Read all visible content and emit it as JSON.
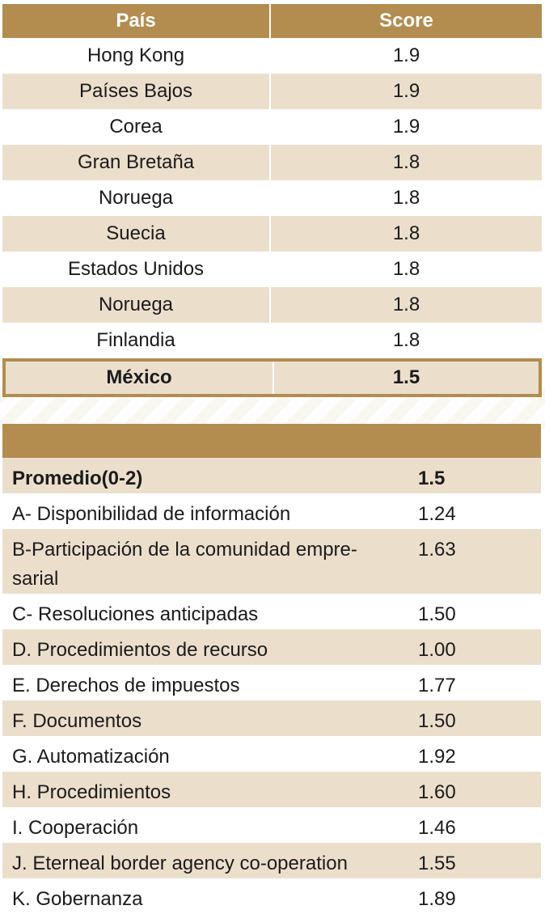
{
  "ranking_table": {
    "headers": [
      "País",
      "Score"
    ],
    "rows": [
      {
        "country": "Hong Kong",
        "score": "1.9"
      },
      {
        "country": "Países Bajos",
        "score": "1.9"
      },
      {
        "country": "Corea",
        "score": "1.9"
      },
      {
        "country": "Gran Bretaña",
        "score": "1.8"
      },
      {
        "country": "Noruega",
        "score": "1.8"
      },
      {
        "country": "Suecia",
        "score": "1.8"
      },
      {
        "country": "Estados Unidos",
        "score": "1.8"
      },
      {
        "country": "Noruega",
        "score": "1.8"
      },
      {
        "country": "Finlandia",
        "score": "1.8"
      },
      {
        "country": "México",
        "score": "1.5"
      }
    ]
  },
  "indicator_table": {
    "rows": [
      {
        "label": "Promedio(0-2)",
        "value": "1.5"
      },
      {
        "label": "A- Disponibilidad de información",
        "value": "1.24"
      },
      {
        "label": "B-Participación de la comunidad empre-sarial",
        "value": "1.63"
      },
      {
        "label": "C- Resoluciones anticipadas",
        "value": "1.50"
      },
      {
        "label": "D. Procedimientos de recurso",
        "value": "1.00"
      },
      {
        "label": "E. Derechos de impuestos",
        "value": "1.77"
      },
      {
        "label": "F. Documentos",
        "value": "1.50"
      },
      {
        "label": "G. Automatización",
        "value": "1.92"
      },
      {
        "label": "H. Procedimientos",
        "value": "1.60"
      },
      {
        "label": "I. Cooperación",
        "value": "1.46"
      },
      {
        "label": "J. Eterneal border agency co-operation",
        "value": "1.55"
      },
      {
        "label": "K. Gobernanza",
        "value": "1.89"
      }
    ]
  },
  "colors": {
    "header": "#b38c4f",
    "stripe": "#ebdfcc"
  }
}
